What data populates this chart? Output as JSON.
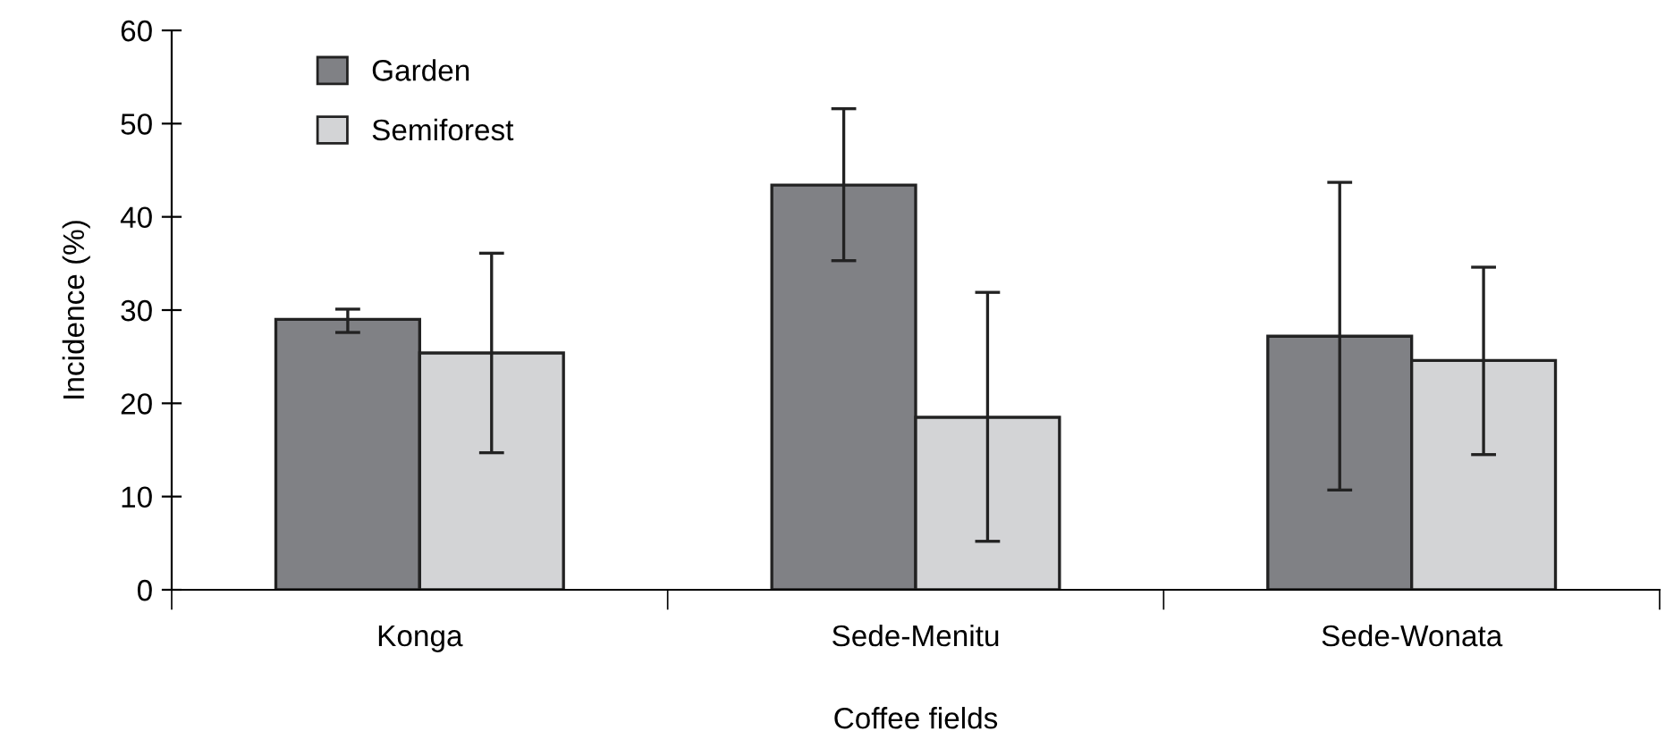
{
  "chart_data": {
    "type": "bar",
    "xlabel": "Coffee fields",
    "ylabel": "Incidence (%)",
    "categories": [
      "Konga",
      "Sede-Menitu",
      "Sede-Wonata"
    ],
    "series": [
      {
        "name": "Garden",
        "color": "#808185",
        "values": [
          29.0,
          43.4,
          27.2
        ],
        "errors": [
          [
            27.6,
            30.1
          ],
          [
            35.3,
            51.6
          ],
          [
            10.7,
            43.7
          ]
        ]
      },
      {
        "name": "Semiforest",
        "color": "#d3d4d6",
        "values": [
          25.4,
          18.5,
          24.6
        ],
        "errors": [
          [
            14.7,
            36.1
          ],
          [
            5.2,
            31.9
          ],
          [
            14.5,
            34.6
          ]
        ]
      }
    ],
    "ylim": [
      0,
      60
    ],
    "yticks": [
      0,
      10,
      20,
      30,
      40,
      50,
      60
    ],
    "grid": false,
    "legend": "top left"
  }
}
